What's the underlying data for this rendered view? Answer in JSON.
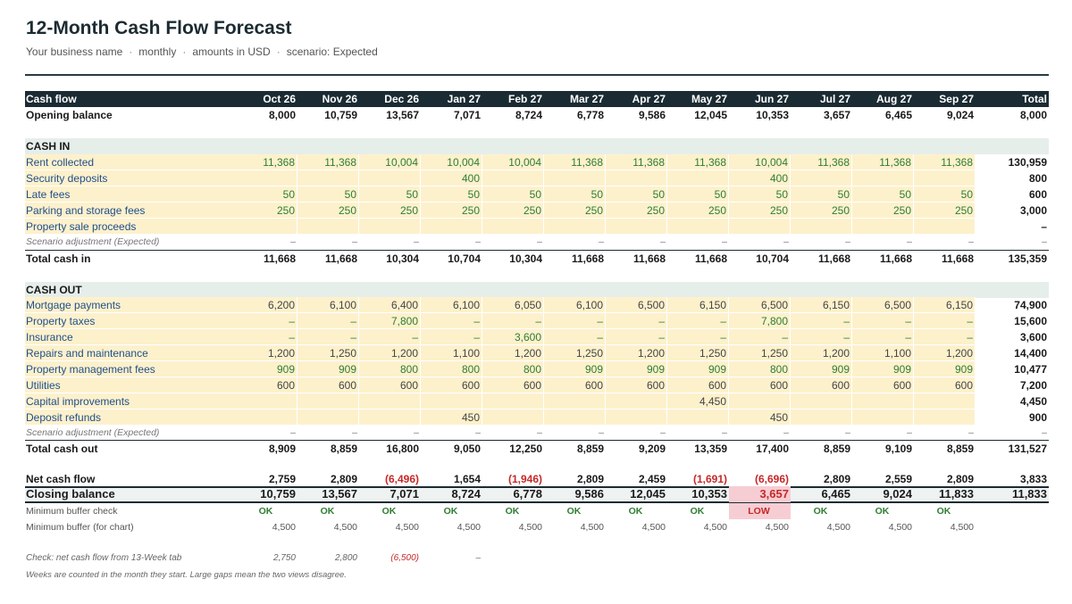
{
  "title": "12-Month Cash Flow Forecast",
  "subtitle": {
    "business": "Your business name",
    "period": "monthly",
    "currency": "amounts in USD",
    "scenario": "scenario: Expected",
    "separator": "·"
  },
  "header": {
    "label": "Cash flow",
    "months": [
      "Oct 26",
      "Nov 26",
      "Dec 26",
      "Jan 27",
      "Feb 27",
      "Mar 27",
      "Apr 27",
      "May 27",
      "Jun 27",
      "Jul 27",
      "Aug 27",
      "Sep 27"
    ],
    "total": "Total"
  },
  "opening": {
    "label": "Opening balance",
    "values": [
      "8,000",
      "10,759",
      "13,567",
      "7,071",
      "8,724",
      "6,778",
      "9,586",
      "12,045",
      "10,353",
      "3,657",
      "6,465",
      "9,024"
    ],
    "total": "8,000"
  },
  "cash_in": {
    "title": "CASH IN",
    "rows": [
      {
        "label": "Rent collected",
        "values": [
          "11,368",
          "11,368",
          "10,004",
          "10,004",
          "10,004",
          "11,368",
          "11,368",
          "11,368",
          "10,004",
          "11,368",
          "11,368",
          "11,368"
        ],
        "total": "130,959"
      },
      {
        "label": "Security deposits",
        "values": [
          "",
          "",
          "",
          "400",
          "",
          "",
          "",
          "",
          "400",
          "",
          "",
          ""
        ],
        "total": "800"
      },
      {
        "label": "Late fees",
        "values": [
          "50",
          "50",
          "50",
          "50",
          "50",
          "50",
          "50",
          "50",
          "50",
          "50",
          "50",
          "50"
        ],
        "total": "600"
      },
      {
        "label": "Parking and storage fees",
        "values": [
          "250",
          "250",
          "250",
          "250",
          "250",
          "250",
          "250",
          "250",
          "250",
          "250",
          "250",
          "250"
        ],
        "total": "3,000"
      },
      {
        "label": "Property sale proceeds",
        "values": [
          "",
          "",
          "",
          "",
          "",
          "",
          "",
          "",
          "",
          "",
          "",
          ""
        ],
        "total": "–"
      }
    ],
    "adjustment": {
      "label": "Scenario adjustment (Expected)",
      "values": [
        "–",
        "–",
        "–",
        "–",
        "–",
        "–",
        "–",
        "–",
        "–",
        "–",
        "–",
        "–"
      ],
      "total": "–"
    },
    "total": {
      "label": "Total cash in",
      "values": [
        "11,668",
        "11,668",
        "10,304",
        "10,704",
        "10,304",
        "11,668",
        "11,668",
        "11,668",
        "10,704",
        "11,668",
        "11,668",
        "11,668"
      ],
      "total": "135,359"
    }
  },
  "cash_out": {
    "title": "CASH OUT",
    "rows": [
      {
        "label": "Mortgage payments",
        "values": [
          "6,200",
          "6,100",
          "6,400",
          "6,100",
          "6,050",
          "6,100",
          "6,500",
          "6,150",
          "6,500",
          "6,150",
          "6,500",
          "6,150"
        ],
        "total": "74,900"
      },
      {
        "label": "Property taxes",
        "values": [
          "–",
          "–",
          "7,800",
          "–",
          "–",
          "–",
          "–",
          "–",
          "7,800",
          "–",
          "–",
          "–"
        ],
        "total": "15,600"
      },
      {
        "label": "Insurance",
        "values": [
          "–",
          "–",
          "–",
          "–",
          "3,600",
          "–",
          "–",
          "–",
          "–",
          "–",
          "–",
          "–"
        ],
        "total": "3,600"
      },
      {
        "label": "Repairs and maintenance",
        "values": [
          "1,200",
          "1,250",
          "1,200",
          "1,100",
          "1,200",
          "1,250",
          "1,200",
          "1,250",
          "1,250",
          "1,200",
          "1,100",
          "1,200"
        ],
        "total": "14,400"
      },
      {
        "label": "Property management fees",
        "values": [
          "909",
          "909",
          "800",
          "800",
          "800",
          "909",
          "909",
          "909",
          "800",
          "909",
          "909",
          "909"
        ],
        "total": "10,477"
      },
      {
        "label": "Utilities",
        "values": [
          "600",
          "600",
          "600",
          "600",
          "600",
          "600",
          "600",
          "600",
          "600",
          "600",
          "600",
          "600"
        ],
        "total": "7,200"
      },
      {
        "label": "Capital improvements",
        "values": [
          "",
          "",
          "",
          "",
          "",
          "",
          "",
          "4,450",
          "",
          "",
          "",
          ""
        ],
        "total": "4,450"
      },
      {
        "label": "Deposit refunds",
        "values": [
          "",
          "",
          "",
          "450",
          "",
          "",
          "",
          "",
          "450",
          "",
          "",
          ""
        ],
        "total": "900"
      }
    ],
    "adjustment": {
      "label": "Scenario adjustment (Expected)",
      "values": [
        "–",
        "–",
        "–",
        "–",
        "–",
        "–",
        "–",
        "–",
        "–",
        "–",
        "–",
        "–"
      ],
      "total": "–"
    },
    "total": {
      "label": "Total cash out",
      "values": [
        "8,909",
        "8,859",
        "16,800",
        "9,050",
        "12,250",
        "8,859",
        "9,209",
        "13,359",
        "17,400",
        "8,859",
        "9,109",
        "8,859"
      ],
      "total": "131,527"
    }
  },
  "net": {
    "label": "Net cash flow",
    "values": [
      "2,759",
      "2,809",
      "(6,496)",
      "1,654",
      "(1,946)",
      "2,809",
      "2,459",
      "(1,691)",
      "(6,696)",
      "2,809",
      "2,559",
      "2,809"
    ],
    "total": "3,833"
  },
  "closing": {
    "label": "Closing balance",
    "values": [
      "10,759",
      "13,567",
      "7,071",
      "8,724",
      "6,778",
      "9,586",
      "12,045",
      "10,353",
      "3,657",
      "6,465",
      "9,024",
      "11,833"
    ],
    "total": "11,833"
  },
  "buffer_check": {
    "label": "Minimum buffer check",
    "values": [
      "OK",
      "OK",
      "OK",
      "OK",
      "OK",
      "OK",
      "OK",
      "OK",
      "LOW",
      "OK",
      "OK",
      "OK"
    ]
  },
  "buffer_chart": {
    "label": "Minimum buffer (for chart)",
    "values": [
      "4,500",
      "4,500",
      "4,500",
      "4,500",
      "4,500",
      "4,500",
      "4,500",
      "4,500",
      "4,500",
      "4,500",
      "4,500",
      "4,500"
    ]
  },
  "check_13week": {
    "label": "Check: net cash flow from 13-Week tab",
    "values": [
      "2,750",
      "2,800",
      "(6,500)",
      "–"
    ]
  },
  "note": "Weeks are counted in the month they start. Large gaps mean the two views disagree.",
  "colors": {
    "header_bg": "#1b2b33",
    "input_bg": "#fdf1cc",
    "input_text": "#1f4e8c",
    "positive": "#2e7d32",
    "negative": "#c62828",
    "low_bg": "#f6cdd3"
  }
}
